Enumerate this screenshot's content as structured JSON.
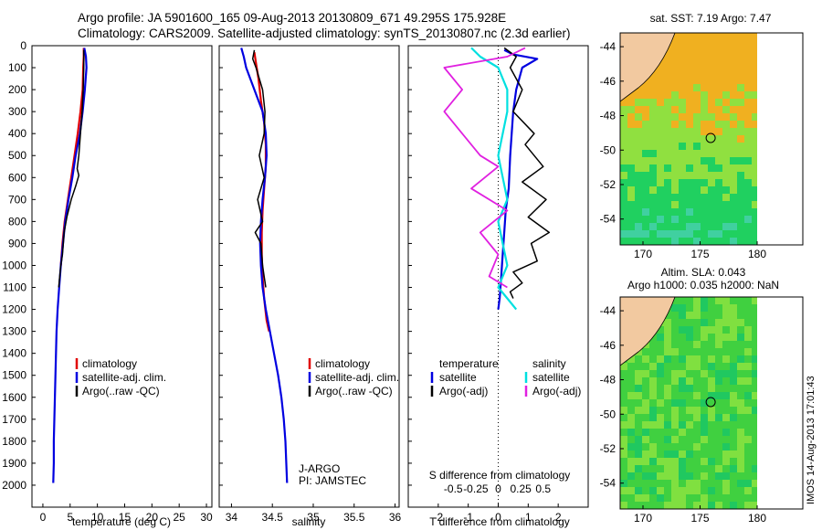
{
  "header": {
    "title_line1": "Argo profile: JA 5901600_165 09-Aug-2013 20130809_671 49.295S 175.928E",
    "title_line2": "Climatology: CARS2009. Satellite-adjusted climatology: synTS_20130807.nc (2.3d earlier)"
  },
  "colors": {
    "climatology": "#e00000",
    "satellite": "#0000e0",
    "argo": "#000000",
    "satellite_salinity": "#00e0e0",
    "argo_salinity": "#e020e0"
  },
  "depth_axis": {
    "ticks": [
      0,
      100,
      200,
      300,
      400,
      500,
      600,
      700,
      800,
      900,
      1000,
      1100,
      1200,
      1300,
      1400,
      1500,
      1600,
      1700,
      1800,
      1900,
      2000
    ],
    "range": [
      0,
      2100
    ]
  },
  "legend": {
    "climatology": "climatology",
    "satellite_adj": "satellite-adj. clim.",
    "argo_raw": "Argo(..raw -QC)",
    "temperature": "temperature",
    "salinity": "salinity",
    "satellite": "satellite",
    "argo_adj": "Argo(-adj)"
  },
  "notes": {
    "program": "J-ARGO",
    "pi": "PI: JAMSTEC",
    "s_diff_label": "S difference from climatology"
  },
  "maps": {
    "sst_title": "sat. SST: 7.19 Argo: 7.47",
    "sla_line1": "Altim. SLA: 0.043",
    "sla_line2": "Argo h1000: 0.035 h2000: NaN",
    "lat_ticks": [
      "-44",
      "-46",
      "-48",
      "-50",
      "-52",
      "-54"
    ],
    "lon_ticks": [
      "170",
      "175",
      "180"
    ],
    "credit": "IMOS 14-Aug-2013 17:01:43",
    "float_lon": 175.928,
    "float_lat": -49.295
  },
  "chart_data": [
    {
      "type": "line",
      "xlabel": "temperature (deg C)",
      "xticks": [
        "0",
        "5",
        "10",
        "15",
        "20",
        "25",
        "30"
      ],
      "xlim": [
        -2,
        31
      ],
      "ylim": [
        0,
        2100
      ],
      "series": [
        {
          "name": "climatology",
          "x": [
            7.5,
            7.5,
            7.4,
            7.3,
            6.9,
            6.4,
            5.8,
            5.2,
            4.6,
            4.0,
            3.6,
            3.3
          ],
          "y": [
            10,
            50,
            100,
            200,
            300,
            400,
            500,
            600,
            700,
            800,
            900,
            1000
          ]
        },
        {
          "name": "satellite-adj. clim.",
          "x": [
            7.6,
            7.9,
            8.0,
            7.7,
            7.3,
            6.8,
            6.0,
            5.4,
            4.7,
            4.1,
            3.7,
            3.3,
            3.0,
            2.7,
            2.5,
            2.4,
            2.3,
            2.2,
            2.1,
            2.0,
            2.0,
            1.9
          ],
          "y": [
            10,
            50,
            100,
            200,
            300,
            400,
            500,
            600,
            700,
            800,
            900,
            1000,
            1100,
            1200,
            1300,
            1400,
            1500,
            1600,
            1700,
            1800,
            1900,
            1990
          ]
        },
        {
          "name": "Argo(..raw -QC)",
          "x": [
            7.5,
            7.5,
            7.4,
            7.2,
            6.9,
            6.6,
            6.3,
            6.6,
            6.0,
            5.2,
            4.4,
            3.9,
            3.6,
            3.3,
            3.1,
            2.9
          ],
          "y": [
            20,
            100,
            200,
            300,
            400,
            500,
            560,
            590,
            640,
            700,
            780,
            850,
            950,
            1000,
            1050,
            1100
          ]
        }
      ]
    },
    {
      "type": "line",
      "xlabel": "salinity",
      "xticks": [
        "34",
        "34.5",
        "35",
        "35.5",
        "36"
      ],
      "xlim": [
        33.85,
        36.05
      ],
      "ylim": [
        0,
        2100
      ],
      "series": [
        {
          "name": "climatology",
          "x": [
            34.28,
            34.3,
            34.33,
            34.36,
            34.4,
            34.42,
            34.42,
            34.4,
            34.38,
            34.37,
            34.37,
            34.38,
            34.4,
            34.43,
            34.46
          ],
          "y": [
            30,
            80,
            150,
            250,
            350,
            450,
            550,
            650,
            750,
            850,
            950,
            1050,
            1150,
            1250,
            1300
          ]
        },
        {
          "name": "satellite-adj. clim.",
          "x": [
            34.12,
            34.15,
            34.18,
            34.28,
            34.38,
            34.42,
            34.43,
            34.41,
            34.38,
            34.36,
            34.35,
            34.36,
            34.38,
            34.42,
            34.47,
            34.52,
            34.57,
            34.61,
            34.64,
            34.66,
            34.68
          ],
          "y": [
            10,
            50,
            100,
            200,
            300,
            400,
            500,
            600,
            700,
            800,
            900,
            1000,
            1100,
            1200,
            1300,
            1400,
            1500,
            1600,
            1700,
            1800,
            1990
          ]
        },
        {
          "name": "Argo(..raw -QC)",
          "x": [
            34.28,
            34.26,
            34.3,
            34.38,
            34.41,
            34.4,
            34.34,
            34.4,
            34.32,
            34.38,
            34.29,
            34.36,
            34.38,
            34.4,
            34.42
          ],
          "y": [
            20,
            60,
            100,
            200,
            300,
            400,
            500,
            600,
            700,
            800,
            850,
            900,
            1000,
            1050,
            1100
          ]
        }
      ]
    },
    {
      "type": "line",
      "xlabel": "T difference from climatology",
      "xticks": [
        "-2",
        "-1",
        "0",
        "1",
        "2"
      ],
      "xlim": [
        -3.0,
        3.0
      ],
      "secondary_xlabel": "S difference from climatology",
      "secondary_xticks": [
        "-0.5",
        "-0.25",
        "0",
        "0.25",
        "0.5"
      ],
      "ylim": [
        0,
        2100
      ],
      "series": [
        {
          "name": "temperature satellite",
          "x": [
            0.2,
            0.5,
            1.3,
            0.8,
            0.6,
            0.5,
            0.4,
            0.35,
            0.25,
            0.2,
            0.15,
            0.1,
            0.05,
            0.0
          ],
          "y": [
            20,
            40,
            60,
            100,
            200,
            300,
            500,
            650,
            750,
            850,
            950,
            1050,
            1150,
            1200
          ]
        },
        {
          "name": "temperature Argo(-adj)",
          "x": [
            0.2,
            0.6,
            0.4,
            0.8,
            0.5,
            1.2,
            0.9,
            1.5,
            0.8,
            1.6,
            1.0,
            1.7,
            1.1,
            1.3,
            0.5,
            0.8,
            0.4,
            0.5
          ],
          "y": [
            10,
            50,
            100,
            200,
            300,
            400,
            450,
            550,
            620,
            700,
            780,
            850,
            900,
            980,
            1030,
            1080,
            1120,
            1150
          ]
        },
        {
          "name": "salinity satellite",
          "x": [
            -0.3,
            -0.2,
            0.0,
            0.1,
            0.1,
            0.0,
            0.1,
            0.0,
            0.05,
            0.1,
            0.0,
            0.1,
            0.2
          ],
          "y": [
            10,
            50,
            100,
            200,
            300,
            500,
            700,
            800,
            900,
            1000,
            1100,
            1150,
            1200
          ]
        },
        {
          "name": "salinity Argo(-adj)",
          "x": [
            0.3,
            0.1,
            -0.6,
            -0.4,
            -0.6,
            -0.4,
            -0.2,
            0.0,
            -0.3,
            0.1,
            -0.2,
            0.0,
            -0.1,
            0.1
          ],
          "y": [
            10,
            50,
            100,
            200,
            300,
            400,
            500,
            550,
            650,
            750,
            850,
            950,
            1050,
            1100
          ]
        }
      ]
    }
  ]
}
